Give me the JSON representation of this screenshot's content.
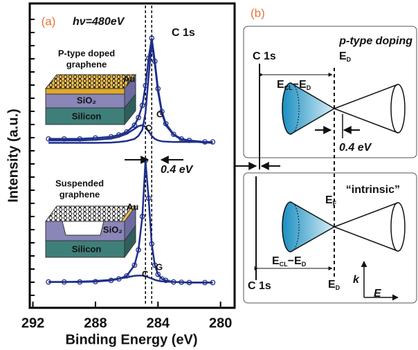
{
  "chart_data": {
    "type": "line",
    "panel_label": "(a)",
    "xlabel": "Binding Energy (eV)",
    "ylabel": "Intensity (a.u.)",
    "xlim": [
      292.2,
      279.1
    ],
    "xticks": [
      292,
      288,
      284,
      280
    ],
    "ylim": [
      0,
      10
    ],
    "x": [
      291,
      290,
      289,
      288,
      287,
      286.5,
      286,
      285.5,
      285.25,
      285,
      284.8,
      284.6,
      284.4,
      284.2,
      284,
      283.75,
      283.5,
      283,
      282.5,
      282,
      281,
      280.5
    ],
    "series": [
      {
        "color": "#1f2f8a",
        "markers": true,
        "values": [
          5.55,
          5.55,
          5.55,
          5.58,
          5.62,
          5.68,
          5.78,
          6.0,
          6.25,
          6.65,
          7.3,
          8.2,
          8.86,
          8.1,
          7.2,
          6.45,
          6.05,
          5.7,
          5.55,
          5.5,
          5.45,
          5.45
        ]
      },
      {
        "color": "#1f2f8a",
        "markers": false,
        "values": [
          5.42,
          5.42,
          5.42,
          5.42,
          5.43,
          5.45,
          5.48,
          5.55,
          5.65,
          5.85,
          6.4,
          7.6,
          8.7,
          8.0,
          7.1,
          6.4,
          6.0,
          5.68,
          5.53,
          5.47,
          5.43,
          5.42
        ]
      },
      {
        "color": "#1f2f8a",
        "markers": false,
        "values": [
          5.5,
          5.5,
          5.5,
          5.52,
          5.56,
          5.62,
          5.72,
          5.88,
          5.97,
          6.0,
          5.95,
          5.8,
          5.65,
          5.55,
          5.5,
          5.47,
          5.46,
          5.45,
          5.45,
          5.45,
          5.45,
          5.45
        ]
      },
      {
        "color": "#1f2f8a",
        "markers": true,
        "values": [
          0.85,
          0.85,
          0.85,
          0.86,
          0.9,
          0.95,
          1.05,
          1.4,
          1.9,
          3.0,
          4.84,
          3.6,
          2.1,
          1.4,
          1.1,
          0.95,
          0.9,
          0.85,
          0.84,
          0.83,
          0.83,
          0.83
        ]
      },
      {
        "color": "#1f2f8a",
        "markers": false,
        "values": [
          0.85,
          0.85,
          0.86,
          0.88,
          0.92,
          0.96,
          1.0,
          1.05,
          1.06,
          1.06,
          1.04,
          1.0,
          0.96,
          0.92,
          0.89,
          0.87,
          0.86,
          0.85,
          0.84,
          0.83,
          0.83,
          0.83
        ]
      }
    ],
    "reference_lines": [
      284.8,
      284.4
    ],
    "annotations": {
      "photon": "hν=480eV",
      "core_level": "C 1s",
      "g_upper": "G",
      "c_upper": "C",
      "g_lower": "G",
      "c_lower": "C",
      "shift": "0.4 eV",
      "doped_title_1": "P-type doped",
      "doped_title_2": "graphene",
      "suspended_title_1": "Suspended",
      "suspended_title_2": "graphene",
      "au_upper": "Au",
      "sio2_upper": "SiO₂",
      "silicon_upper": "Silicon",
      "au_lower": "Au",
      "sio2_lower": "SiO₂",
      "silicon_lower": "Silicon"
    }
  },
  "panel_b": {
    "label": "(b)",
    "top": {
      "title": "p-type doping",
      "core_level": "C 1s",
      "dirac": {
        "main": "E",
        "sub": "D"
      },
      "gap": {
        "a": "E",
        "a_sub": "CL",
        "dash": "−",
        "b": "E",
        "b_sub": "D"
      },
      "shift": "0.4 eV"
    },
    "bottom": {
      "title": "“intrinsic”",
      "core_level": "C 1s",
      "fermi": {
        "main": "E",
        "sub": "F"
      },
      "dirac": {
        "main": "E",
        "sub": "D"
      },
      "gap": {
        "a": "E",
        "a_sub": "CL",
        "dash": "−",
        "b": "E",
        "b_sub": "D"
      },
      "k_axis": "k",
      "e_axis": "E"
    }
  }
}
